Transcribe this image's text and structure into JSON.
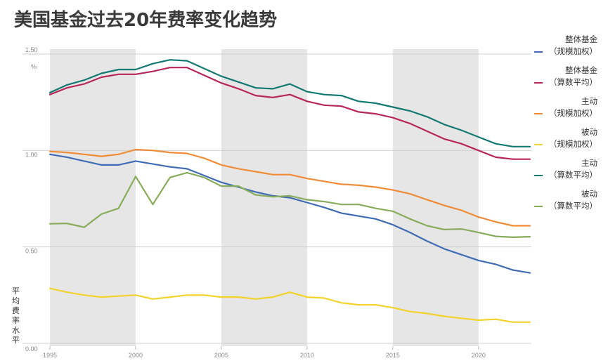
{
  "chart_data": {
    "type": "line",
    "title": "美国基金过去20年费率变化趋势",
    "ylabel": "平均费率水平",
    "y_unit": "%",
    "ylim": [
      0,
      1.5
    ],
    "xlim": [
      1995,
      2023
    ],
    "x_ticks": [
      1995,
      2000,
      2005,
      2010,
      2015,
      2020
    ],
    "y_ticks": [
      {
        "value": 0,
        "label": "0.00"
      },
      {
        "value": 0.5,
        "label": "0.50"
      },
      {
        "value": 1.0,
        "label": "1.00"
      },
      {
        "value": 1.5,
        "label": "1.50"
      }
    ],
    "shaded_bands": [
      [
        1995,
        2000
      ],
      [
        2005,
        2010
      ],
      [
        2015,
        2020
      ]
    ],
    "legend_position": "right",
    "x": [
      1995,
      1996,
      1997,
      1998,
      1999,
      2000,
      2001,
      2002,
      2003,
      2004,
      2005,
      2006,
      2007,
      2008,
      2009,
      2010,
      2011,
      2012,
      2013,
      2014,
      2015,
      2016,
      2017,
      2018,
      2019,
      2020,
      2021,
      2022,
      2023
    ],
    "series": [
      {
        "name": "整体基金（规模加权）",
        "color": "#3f6cb5",
        "values": [
          0.98,
          0.965,
          0.945,
          0.925,
          0.925,
          0.945,
          0.93,
          0.915,
          0.905,
          0.87,
          0.835,
          0.81,
          0.785,
          0.765,
          0.755,
          0.73,
          0.705,
          0.675,
          0.66,
          0.645,
          0.615,
          0.575,
          0.53,
          0.49,
          0.46,
          0.43,
          0.41,
          0.38,
          0.365
        ]
      },
      {
        "name": "整体基金（算数平均）",
        "color": "#b8275a",
        "values": [
          1.29,
          1.325,
          1.345,
          1.38,
          1.395,
          1.395,
          1.41,
          1.43,
          1.43,
          1.39,
          1.35,
          1.32,
          1.285,
          1.275,
          1.29,
          1.255,
          1.235,
          1.23,
          1.2,
          1.19,
          1.17,
          1.14,
          1.1,
          1.06,
          1.035,
          1.0,
          0.965,
          0.955,
          0.955
        ]
      },
      {
        "name": "主动（规模加权）",
        "color": "#f08c36",
        "values": [
          0.995,
          0.99,
          0.98,
          0.97,
          0.98,
          1.005,
          1.0,
          0.99,
          0.985,
          0.96,
          0.925,
          0.905,
          0.89,
          0.875,
          0.875,
          0.855,
          0.84,
          0.825,
          0.82,
          0.81,
          0.795,
          0.775,
          0.745,
          0.715,
          0.69,
          0.655,
          0.63,
          0.61,
          0.61
        ]
      },
      {
        "name": "被动（规模加权）",
        "color": "#f2d32b",
        "values": [
          0.285,
          0.265,
          0.25,
          0.24,
          0.245,
          0.25,
          0.23,
          0.24,
          0.25,
          0.25,
          0.24,
          0.24,
          0.23,
          0.24,
          0.265,
          0.24,
          0.235,
          0.21,
          0.2,
          0.2,
          0.185,
          0.165,
          0.155,
          0.14,
          0.13,
          0.12,
          0.125,
          0.11,
          0.11
        ]
      },
      {
        "name": "主动（算数平均）",
        "color": "#127a72",
        "values": [
          1.3,
          1.34,
          1.365,
          1.4,
          1.42,
          1.42,
          1.45,
          1.47,
          1.465,
          1.425,
          1.385,
          1.355,
          1.325,
          1.32,
          1.345,
          1.305,
          1.29,
          1.285,
          1.255,
          1.245,
          1.225,
          1.205,
          1.175,
          1.135,
          1.105,
          1.07,
          1.035,
          1.02,
          1.02
        ]
      },
      {
        "name": "被动（算数平均）",
        "color": "#86ac5c",
        "values": [
          0.62,
          0.622,
          0.602,
          0.67,
          0.7,
          0.865,
          0.72,
          0.86,
          0.885,
          0.86,
          0.815,
          0.815,
          0.77,
          0.76,
          0.765,
          0.745,
          0.735,
          0.72,
          0.72,
          0.7,
          0.685,
          0.645,
          0.61,
          0.59,
          0.593,
          0.575,
          0.555,
          0.55,
          0.553
        ]
      }
    ],
    "legend": [
      {
        "lines": [
          "整体基金",
          "（规模加权）"
        ],
        "color": "#3f6cb5"
      },
      {
        "lines": [
          "整体基金",
          "（算数平均）"
        ],
        "color": "#b8275a"
      },
      {
        "lines": [
          "主动",
          "（规模加权）"
        ],
        "color": "#f08c36"
      },
      {
        "lines": [
          "被动",
          "（规模加权）"
        ],
        "color": "#f2d32b"
      },
      {
        "lines": [
          "主动",
          "（算数平均）"
        ],
        "color": "#127a72"
      },
      {
        "lines": [
          "被动",
          "（算数平均）"
        ],
        "color": "#86ac5c"
      }
    ]
  }
}
